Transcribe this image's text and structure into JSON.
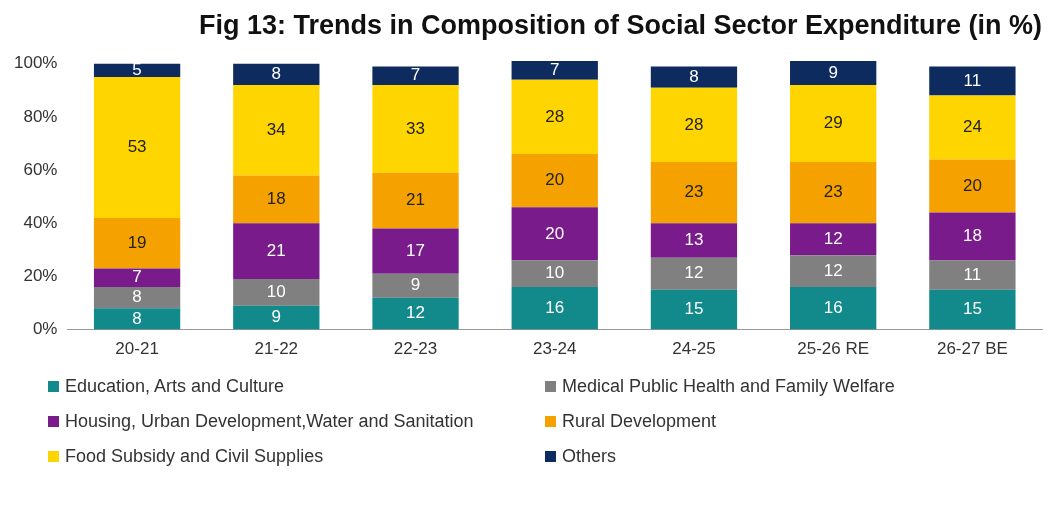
{
  "chart_data": {
    "type": "bar",
    "title": "Fig 13: Trends in Composition of Social Sector Expenditure (in %)",
    "categories": [
      "20-21",
      "21-22",
      "22-23",
      "23-24",
      "24-25",
      "25-26 RE",
      "26-27 BE"
    ],
    "stacked": true,
    "data_labels": true,
    "grid": false,
    "legend": "bottom",
    "ylim": [
      0,
      102
    ],
    "yticks": [
      {
        "value": 0,
        "label": "0%"
      },
      {
        "value": 20,
        "label": "20%"
      },
      {
        "value": 40,
        "label": "40%"
      },
      {
        "value": 60,
        "label": "60%"
      },
      {
        "value": 80,
        "label": "80%"
      },
      {
        "value": 100,
        "label": "100%"
      }
    ],
    "series": [
      {
        "name": "Education, Arts and Culture",
        "color": "#12898a",
        "values": [
          8,
          9,
          12,
          16,
          15,
          16,
          15
        ]
      },
      {
        "name": "Medical Public Health and Family Welfare",
        "color": "#808080",
        "values": [
          8,
          10,
          9,
          10,
          12,
          12,
          11
        ]
      },
      {
        "name": "Housing, Urban Development,Water and Sanitation",
        "color": "#7a1b8c",
        "values": [
          7,
          21,
          17,
          20,
          13,
          12,
          18
        ]
      },
      {
        "name": "Rural Development",
        "color": "#f5a200",
        "values": [
          19,
          18,
          21,
          20,
          23,
          23,
          20
        ]
      },
      {
        "name": "Food Subsidy and Civil Supplies",
        "color": "#ffd500",
        "values": [
          53,
          34,
          33,
          28,
          28,
          29,
          24
        ]
      },
      {
        "name": "Others",
        "color": "#0d2b5e",
        "values": [
          5,
          8,
          7,
          7,
          8,
          9,
          11
        ]
      }
    ]
  }
}
